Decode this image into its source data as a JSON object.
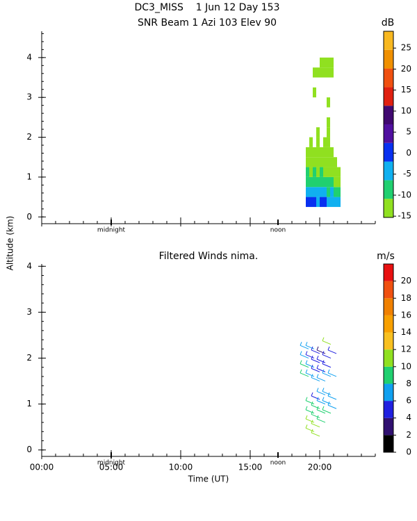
{
  "chart_data": [
    {
      "type": "heatmap",
      "title": "DC3_MISS    1 Jun 12 Day 153",
      "subtitle": "SNR Beam 1 Azi 103 Elev 90",
      "y_label": "Altitude (km)",
      "xlim": [
        0,
        24
      ],
      "ylim": [
        -0.17,
        4.66
      ],
      "xticks": [
        0,
        5,
        10,
        15,
        20
      ],
      "xtick_labels": false,
      "yticks": [
        0,
        1,
        2,
        3,
        4
      ],
      "x_markers": [
        {
          "value": 5,
          "label": "midnight"
        },
        {
          "value": 17,
          "label": "noon"
        }
      ],
      "x_edges": [
        19.0,
        19.25,
        19.5,
        19.75,
        20.0,
        20.25,
        20.5,
        20.75,
        21.0,
        21.25,
        21.5
      ],
      "y_edges": [
        0.25,
        0.5,
        0.75,
        1.0,
        1.25,
        1.5,
        1.75,
        2.0,
        2.25,
        2.5,
        2.75,
        3.0,
        3.25,
        3.5,
        3.75,
        4.0
      ],
      "z": [
        [
          -2,
          0,
          -1,
          -3,
          -2,
          -1,
          -4,
          -3,
          -5,
          -6
        ],
        [
          -5,
          -4,
          -6,
          -5,
          -4,
          -6,
          -7,
          -6,
          -8,
          -9
        ],
        [
          -8,
          -7,
          -9,
          -8,
          -7,
          -9,
          -10,
          -9,
          -11,
          -11
        ],
        [
          -10,
          -11,
          -10,
          -11,
          -9,
          -11,
          -12,
          -11,
          -13,
          -12
        ],
        [
          -12,
          -13,
          -12,
          -13,
          -12,
          -13,
          -13,
          -12,
          -14,
          null
        ],
        [
          -13,
          -14,
          -13,
          -12,
          -13,
          -14,
          -13,
          -14,
          null,
          null
        ],
        [
          null,
          -14,
          null,
          -13,
          null,
          -14,
          -14,
          null,
          null,
          null
        ],
        [
          null,
          null,
          null,
          -14,
          null,
          null,
          -14,
          null,
          null,
          null
        ],
        [
          null,
          null,
          null,
          null,
          null,
          null,
          -14,
          null,
          null,
          null
        ],
        [
          null,
          null,
          null,
          null,
          null,
          null,
          null,
          null,
          null,
          null
        ],
        [
          null,
          null,
          null,
          null,
          null,
          null,
          -14,
          null,
          null,
          null
        ],
        [
          null,
          null,
          -14,
          null,
          null,
          null,
          null,
          null,
          null,
          null
        ],
        [
          null,
          null,
          null,
          null,
          null,
          null,
          null,
          null,
          null,
          null
        ],
        [
          null,
          null,
          -14,
          -14,
          -13,
          -14,
          -14,
          -13,
          null,
          null
        ],
        [
          null,
          null,
          null,
          null,
          -14,
          -13,
          -14,
          -13,
          null,
          null
        ]
      ],
      "colorbar": {
        "label": "dB",
        "lim": [
          -15.3,
          29.0
        ],
        "ticks": [
          25,
          20,
          15,
          10,
          5,
          0,
          -5,
          -10,
          -15
        ],
        "colors": [
          "#90e020",
          "#20d070",
          "#10b0f0",
          "#0830f0",
          "#5010a0",
          "#400870",
          "#e02010",
          "#f05010",
          "#f09000",
          "#f8b820"
        ]
      }
    },
    {
      "type": "barbs",
      "title": "Filtered Winds nima.",
      "x_label": "Time (UT)",
      "xlim": [
        0,
        24
      ],
      "ylim": [
        -0.14,
        4.05
      ],
      "xticks": [
        {
          "value": 0,
          "label": "00:00"
        },
        {
          "value": 5,
          "label": "05:00"
        },
        {
          "value": 10,
          "label": "10:00"
        },
        {
          "value": 15,
          "label": "15:00"
        },
        {
          "value": 20,
          "label": "20:00"
        }
      ],
      "xtick_labels": true,
      "yticks": [
        0,
        1,
        2,
        3,
        4
      ],
      "x_markers": [
        {
          "value": 5,
          "label": "midnight"
        },
        {
          "value": 17,
          "label": "noon"
        }
      ],
      "x": [
        19.2,
        19.2,
        19.2,
        19.2,
        19.6,
        19.6,
        19.6,
        19.6,
        19.6,
        19.6,
        19.6,
        19.6,
        20.0,
        20.0,
        20.0,
        20.0,
        20.0,
        20.0,
        20.0,
        20.0,
        20.0,
        20.4,
        20.4,
        20.4,
        20.4,
        20.4,
        20.4,
        20.4,
        20.4,
        20.8,
        20.8,
        20.8,
        20.8,
        20.8,
        20.8,
        20.8,
        21.2,
        21.2,
        21.2,
        21.2
      ],
      "y": [
        1.6,
        1.8,
        2.0,
        2.2,
        0.4,
        0.6,
        0.8,
        1.0,
        1.6,
        1.8,
        2.0,
        2.2,
        0.3,
        0.5,
        0.7,
        0.9,
        1.1,
        1.5,
        1.7,
        1.9,
        2.1,
        0.6,
        0.8,
        1.0,
        1.2,
        1.5,
        1.7,
        1.9,
        2.1,
        0.8,
        1.0,
        1.2,
        1.6,
        1.8,
        2.0,
        2.3,
        0.9,
        1.1,
        1.6,
        2.1
      ],
      "speed": [
        9,
        8,
        7,
        6,
        11,
        10,
        9,
        8,
        7,
        6,
        5,
        6,
        11,
        10,
        9,
        8,
        5,
        6,
        5,
        4,
        5,
        9,
        8,
        7,
        6,
        6,
        5,
        4,
        3,
        8,
        7,
        6,
        7,
        5,
        4,
        11,
        7,
        6,
        6,
        4
      ],
      "colorbar": {
        "label": "m/s",
        "lim": [
          0,
          22
        ],
        "ticks": [
          20,
          18,
          16,
          14,
          12,
          10,
          8,
          6,
          4,
          2,
          0
        ],
        "colors": [
          "#000000",
          "#301070",
          "#2020e0",
          "#10a0f0",
          "#20d070",
          "#90e020",
          "#f8c020",
          "#f8a000",
          "#f08000",
          "#f05010",
          "#e81010"
        ]
      }
    }
  ]
}
